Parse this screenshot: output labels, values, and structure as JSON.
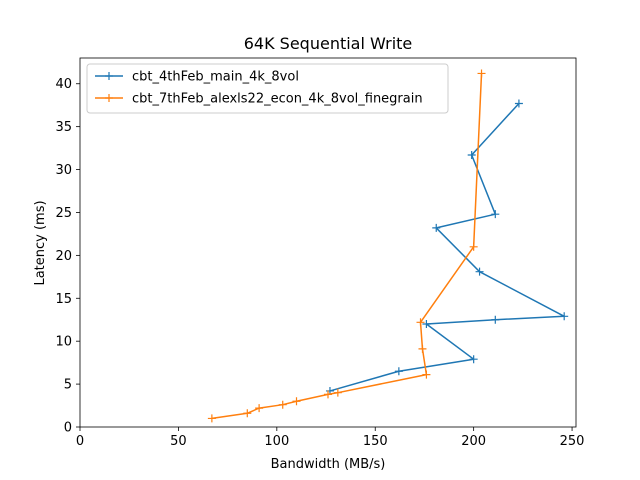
{
  "chart_data": {
    "type": "line",
    "title": "64K  Sequential Write",
    "xlabel": "Bandwidth (MB/s)",
    "ylabel": "Latency (ms)",
    "xlim": [
      0,
      252
    ],
    "ylim": [
      0,
      43
    ],
    "xticks": [
      0,
      50,
      100,
      150,
      200,
      250
    ],
    "yticks": [
      0,
      5,
      10,
      15,
      20,
      25,
      30,
      35,
      40
    ],
    "grid": false,
    "legend_position": "top-left",
    "series": [
      {
        "name": "cbt_4thFeb_main_4k_8vol",
        "color": "#1f77b4",
        "marker": "+",
        "points": [
          {
            "x": 127,
            "y": 4.2
          },
          {
            "x": 162,
            "y": 6.5
          },
          {
            "x": 200,
            "y": 7.9
          },
          {
            "x": 176,
            "y": 12.0
          },
          {
            "x": 211,
            "y": 12.5
          },
          {
            "x": 246,
            "y": 12.9
          },
          {
            "x": 203,
            "y": 18.1
          },
          {
            "x": 181,
            "y": 23.2
          },
          {
            "x": 211,
            "y": 24.8
          },
          {
            "x": 199,
            "y": 31.7
          },
          {
            "x": 223,
            "y": 37.7
          }
        ]
      },
      {
        "name": "cbt_7thFeb_alexls22_econ_4k_8vol_finegrain",
        "color": "#ff7f0e",
        "marker": "+",
        "points": [
          {
            "x": 67,
            "y": 1.0
          },
          {
            "x": 85,
            "y": 1.6
          },
          {
            "x": 91,
            "y": 2.2
          },
          {
            "x": 103,
            "y": 2.6
          },
          {
            "x": 110,
            "y": 3.0
          },
          {
            "x": 126,
            "y": 3.8
          },
          {
            "x": 131,
            "y": 4.0
          },
          {
            "x": 176,
            "y": 6.1
          },
          {
            "x": 174,
            "y": 9.1
          },
          {
            "x": 173,
            "y": 12.2
          },
          {
            "x": 200,
            "y": 21.0
          },
          {
            "x": 204,
            "y": 41.2
          }
        ]
      }
    ]
  }
}
